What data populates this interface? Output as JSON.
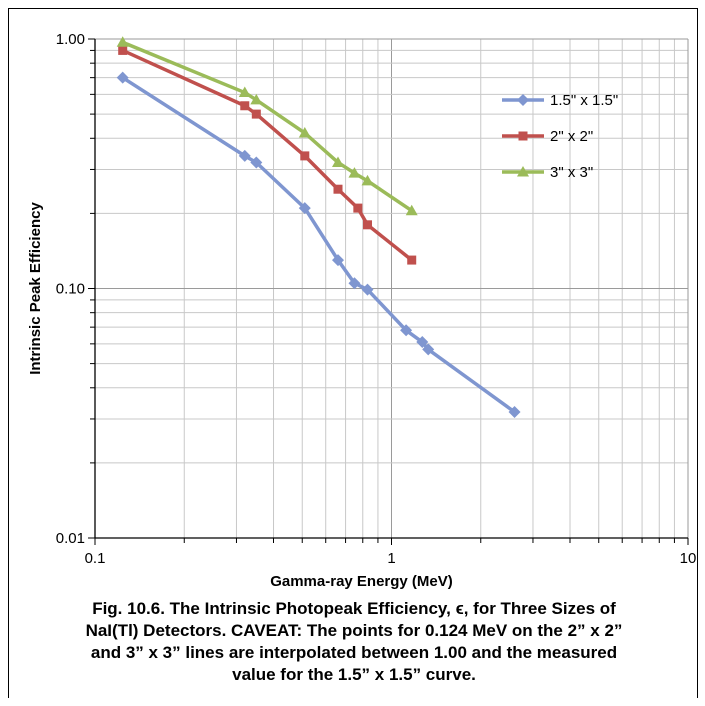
{
  "chart_data": {
    "type": "line",
    "x_scale": "log",
    "y_scale": "log",
    "xlim": [
      0.1,
      10
    ],
    "ylim": [
      0.01,
      1.0
    ],
    "grid": true,
    "legend_position": "top-right",
    "xlabel": "Gamma-ray Energy (MeV)",
    "ylabel": "Intrinsic Peak Efficiency",
    "x_ticks": [
      "0.1",
      "1",
      "10"
    ],
    "y_ticks": [
      "0.01",
      "0.10",
      "1.00"
    ],
    "series": [
      {
        "name": "1.5\" x 1.5\"",
        "color": "#7f96d0",
        "marker": "diamond",
        "x": [
          0.124,
          0.32,
          0.35,
          0.51,
          0.66,
          0.75,
          0.83,
          1.12,
          1.27,
          1.33,
          2.6
        ],
        "y": [
          0.7,
          0.34,
          0.32,
          0.21,
          0.13,
          0.105,
          0.099,
          0.068,
          0.061,
          0.057,
          0.032
        ]
      },
      {
        "name": "2\" x 2\"",
        "color": "#c0504d",
        "marker": "square",
        "x": [
          0.124,
          0.32,
          0.35,
          0.51,
          0.66,
          0.77,
          0.83,
          1.17
        ],
        "y": [
          0.9,
          0.54,
          0.5,
          0.34,
          0.25,
          0.21,
          0.18,
          0.13
        ]
      },
      {
        "name": "3\" x 3\"",
        "color": "#9bbb59",
        "marker": "triangle",
        "x": [
          0.124,
          0.32,
          0.35,
          0.51,
          0.66,
          0.75,
          0.83,
          1.17
        ],
        "y": [
          0.97,
          0.61,
          0.57,
          0.42,
          0.32,
          0.29,
          0.27,
          0.205
        ]
      }
    ]
  },
  "caption": {
    "line1": "Fig. 10.6.  The Intrinsic Photopeak Efficiency, ϵ, for Three Sizes of",
    "line2": "NaI(Tl) Detectors. CAVEAT: The points for 0.124 MeV on the 2” x 2”",
    "line3": "and 3” x 3” lines are interpolated between 1.00 and the measured",
    "line4": "value for the 1.5” x 1.5” curve."
  }
}
